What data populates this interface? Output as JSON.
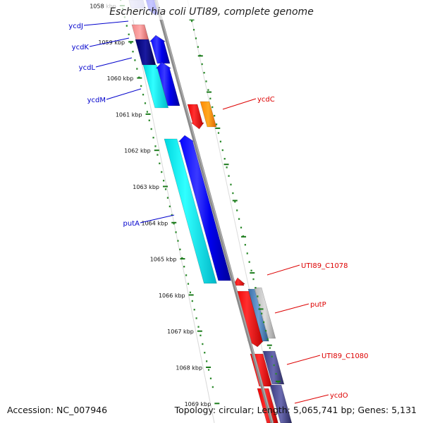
{
  "title": "Escherichia coli UTI89, complete genome",
  "footer": {
    "accession": "Accession: NC_007946",
    "summary": "Topology: circular; Length: 5,065,741 bp; Genes: 5,131"
  },
  "colors": {
    "backbone": "#888888",
    "tick": "#2e8b2e",
    "scale_tick": "#1a7a1a",
    "label_blue": "#0000cc",
    "label_red": "#dd0000"
  },
  "scale": {
    "unit": "kbp",
    "labels": [
      "1058 kbp",
      "1059 kbp",
      "1060 kbp",
      "1061 kbp",
      "1062 kbp",
      "1063 kbp",
      "1064 kbp",
      "1065 kbp",
      "1066 kbp",
      "1067 kbp",
      "1068 kbp",
      "1069 kbp"
    ]
  },
  "genes_left": [
    {
      "name": "ycdJ",
      "color": "#0000cc"
    },
    {
      "name": "ycdK",
      "color": "#0000cc"
    },
    {
      "name": "ycdL",
      "color": "#0000cc"
    },
    {
      "name": "ycdM",
      "color": "#0000cc"
    },
    {
      "name": "putA",
      "color": "#0000cc"
    }
  ],
  "genes_right": [
    {
      "name": "ycdC",
      "color": "#dd0000"
    },
    {
      "name": "UTI89_C1078",
      "color": "#dd0000"
    },
    {
      "name": "putP",
      "color": "#dd0000"
    },
    {
      "name": "UTI89_C1080",
      "color": "#dd0000"
    },
    {
      "name": "ycdO",
      "color": "#dd0000"
    }
  ]
}
